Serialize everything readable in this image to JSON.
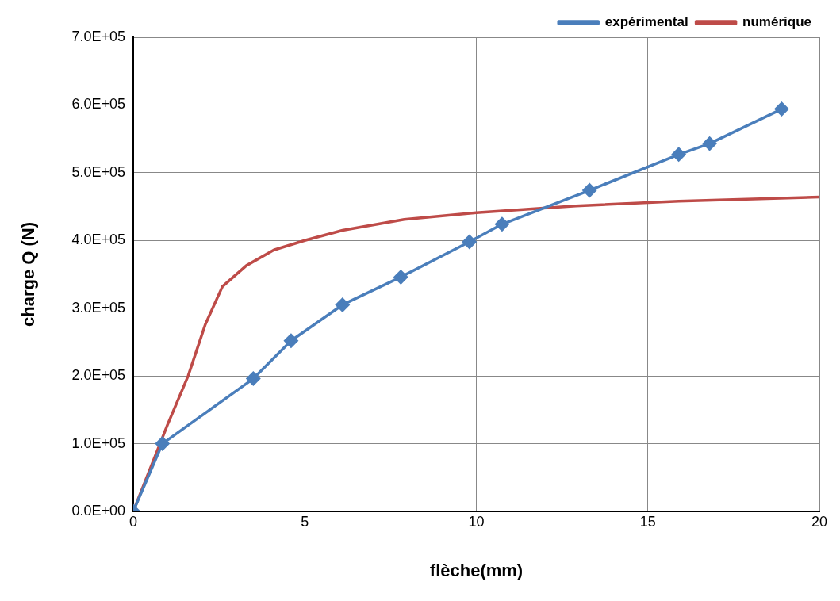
{
  "chart_data": {
    "type": "line",
    "xlabel": "flèche(mm)",
    "ylabel": "charge Q (N)",
    "xlim": [
      0,
      20
    ],
    "xticks": [
      0,
      5,
      10,
      15,
      20
    ],
    "ylim": [
      0,
      700000
    ],
    "yticks": [
      {
        "value": 0,
        "label": "0.0E+00"
      },
      {
        "value": 100000,
        "label": "1.0E+05"
      },
      {
        "value": 200000,
        "label": "2.0E+05"
      },
      {
        "value": 300000,
        "label": "3.0E+05"
      },
      {
        "value": 400000,
        "label": "4.0E+05"
      },
      {
        "value": 500000,
        "label": "5.0E+05"
      },
      {
        "value": 600000,
        "label": "6.0E+05"
      },
      {
        "value": 700000,
        "label": "7.0E+05"
      }
    ],
    "grid": true,
    "legend": "top right",
    "series": [
      {
        "name": "expérimental",
        "color": "#4a7ebb",
        "marker": "diamond",
        "x": [
          0,
          0.85,
          3.5,
          4.6,
          6.1,
          7.8,
          9.8,
          10.75,
          13.3,
          15.9,
          16.8,
          18.9
        ],
        "values": [
          0,
          100000,
          196000,
          252000,
          305000,
          346000,
          398000,
          424000,
          474000,
          527000,
          543000,
          594000
        ]
      },
      {
        "name": "numérique",
        "color": "#be4b48",
        "marker": "none",
        "x": [
          0,
          1.0,
          1.6,
          2.1,
          2.6,
          3.3,
          4.1,
          5,
          6.1,
          7.9,
          10,
          12.9,
          15.9,
          20
        ],
        "values": [
          0,
          128000,
          200000,
          276000,
          332000,
          363000,
          386000,
          400000,
          415000,
          431000,
          441000,
          451000,
          458000,
          464000
        ]
      }
    ]
  }
}
